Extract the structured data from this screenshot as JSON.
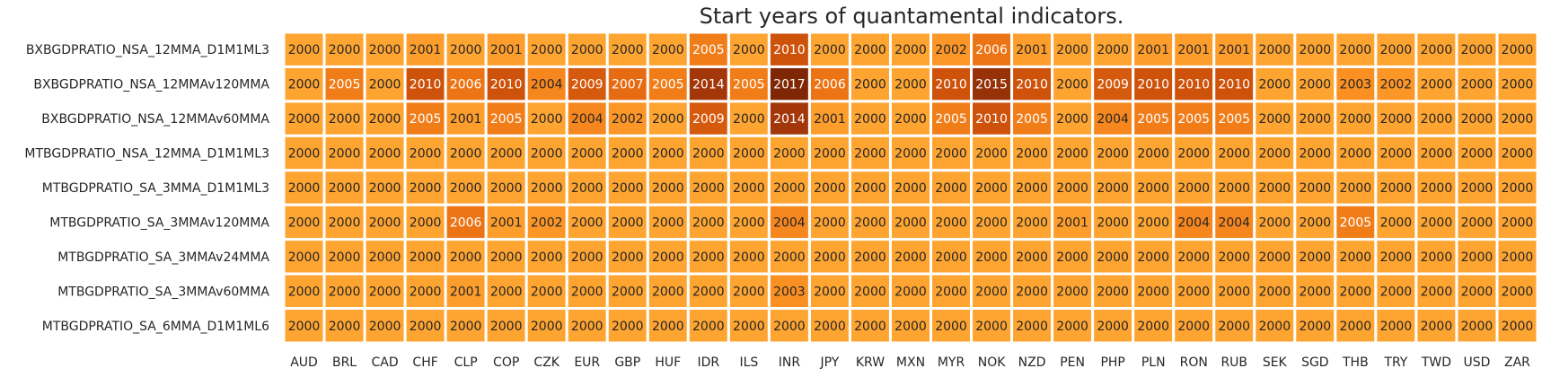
{
  "chart_data": {
    "type": "heatmap",
    "title": "Start years of quantamental indicators.",
    "xlabel": "",
    "ylabel": "",
    "columns": [
      "AUD",
      "BRL",
      "CAD",
      "CHF",
      "CLP",
      "COP",
      "CZK",
      "EUR",
      "GBP",
      "HUF",
      "IDR",
      "ILS",
      "INR",
      "JPY",
      "KRW",
      "MXN",
      "MYR",
      "NOK",
      "NZD",
      "PEN",
      "PHP",
      "PLN",
      "RON",
      "RUB",
      "SEK",
      "SGD",
      "THB",
      "TRY",
      "TWD",
      "USD",
      "ZAR"
    ],
    "rows": [
      {
        "name": "BXBGDPRATIO_NSA_12MMA_D1M1ML3",
        "values": [
          2000,
          2000,
          2000,
          2001,
          2000,
          2001,
          2000,
          2000,
          2000,
          2000,
          2005,
          2000,
          2010,
          2000,
          2000,
          2000,
          2002,
          2006,
          2001,
          2000,
          2000,
          2001,
          2001,
          2001,
          2000,
          2000,
          2000,
          2000,
          2000,
          2000,
          2000
        ]
      },
      {
        "name": "BXBGDPRATIO_NSA_12MMAv120MMA",
        "values": [
          2000,
          2005,
          2000,
          2010,
          2006,
          2010,
          2004,
          2009,
          2007,
          2005,
          2014,
          2005,
          2017,
          2006,
          2000,
          2000,
          2010,
          2015,
          2010,
          2000,
          2009,
          2010,
          2010,
          2010,
          2000,
          2000,
          2003,
          2002,
          2000,
          2000,
          2000
        ]
      },
      {
        "name": "BXBGDPRATIO_NSA_12MMAv60MMA",
        "values": [
          2000,
          2000,
          2000,
          2005,
          2001,
          2005,
          2000,
          2004,
          2002,
          2000,
          2009,
          2000,
          2014,
          2001,
          2000,
          2000,
          2005,
          2010,
          2005,
          2000,
          2004,
          2005,
          2005,
          2005,
          2000,
          2000,
          2000,
          2000,
          2000,
          2000,
          2000
        ]
      },
      {
        "name": "MTBGDPRATIO_NSA_12MMA_D1M1ML3",
        "values": [
          2000,
          2000,
          2000,
          2000,
          2000,
          2000,
          2000,
          2000,
          2000,
          2000,
          2000,
          2000,
          2000,
          2000,
          2000,
          2000,
          2000,
          2000,
          2000,
          2000,
          2000,
          2000,
          2000,
          2000,
          2000,
          2000,
          2000,
          2000,
          2000,
          2000,
          2000
        ]
      },
      {
        "name": "MTBGDPRATIO_SA_3MMA_D1M1ML3",
        "values": [
          2000,
          2000,
          2000,
          2000,
          2000,
          2000,
          2000,
          2000,
          2000,
          2000,
          2000,
          2000,
          2000,
          2000,
          2000,
          2000,
          2000,
          2000,
          2000,
          2000,
          2000,
          2000,
          2000,
          2000,
          2000,
          2000,
          2000,
          2000,
          2000,
          2000,
          2000
        ]
      },
      {
        "name": "MTBGDPRATIO_SA_3MMAv120MMA",
        "values": [
          2000,
          2000,
          2000,
          2000,
          2006,
          2001,
          2002,
          2000,
          2000,
          2000,
          2000,
          2000,
          2004,
          2000,
          2000,
          2000,
          2000,
          2000,
          2000,
          2001,
          2000,
          2000,
          2004,
          2004,
          2000,
          2000,
          2005,
          2000,
          2000,
          2000,
          2000
        ]
      },
      {
        "name": "MTBGDPRATIO_SA_3MMAv24MMA",
        "values": [
          2000,
          2000,
          2000,
          2000,
          2000,
          2000,
          2000,
          2000,
          2000,
          2000,
          2000,
          2000,
          2000,
          2000,
          2000,
          2000,
          2000,
          2000,
          2000,
          2000,
          2000,
          2000,
          2000,
          2000,
          2000,
          2000,
          2000,
          2000,
          2000,
          2000,
          2000
        ]
      },
      {
        "name": "MTBGDPRATIO_SA_3MMAv60MMA",
        "values": [
          2000,
          2000,
          2000,
          2000,
          2001,
          2000,
          2000,
          2000,
          2000,
          2000,
          2000,
          2000,
          2003,
          2000,
          2000,
          2000,
          2000,
          2000,
          2000,
          2000,
          2000,
          2000,
          2000,
          2000,
          2000,
          2000,
          2000,
          2000,
          2000,
          2000,
          2000
        ]
      },
      {
        "name": "MTBGDPRATIO_SA_6MMA_D1M1ML6",
        "values": [
          2000,
          2000,
          2000,
          2000,
          2000,
          2000,
          2000,
          2000,
          2000,
          2000,
          2000,
          2000,
          2000,
          2000,
          2000,
          2000,
          2000,
          2000,
          2000,
          2000,
          2000,
          2000,
          2000,
          2000,
          2000,
          2000,
          2000,
          2000,
          2000,
          2000,
          2000
        ]
      }
    ],
    "value_range": [
      2000,
      2017
    ],
    "colormap": [
      "#fea431",
      "#f98c20",
      "#e96d12",
      "#cc500a",
      "#a8390a",
      "#7f2704"
    ],
    "cell_border_color": "#ffffff",
    "grid": false,
    "legend": "none"
  }
}
